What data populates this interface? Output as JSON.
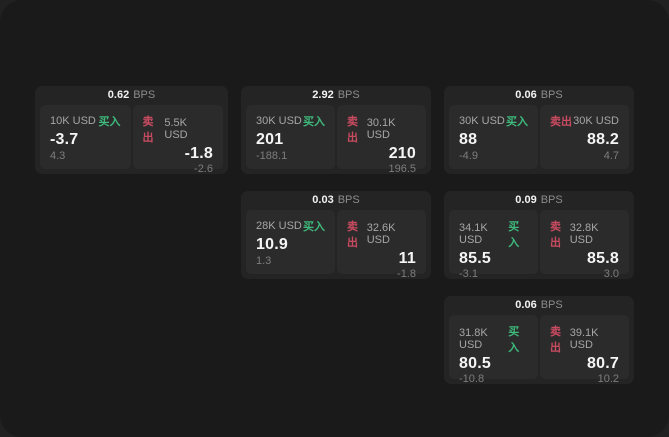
{
  "page": {
    "background_outer": "#212121",
    "background_panel": "#1a1a1a"
  },
  "labels": {
    "buy": "买入",
    "sell": "卖出",
    "bps_unit": "BPS"
  },
  "colors": {
    "buy_accent": "#3eba7c",
    "sell_accent": "#c94b60",
    "card_background": "#242424",
    "pane_background": "#2b2b2b"
  },
  "cards": [
    {
      "bps": "0.62",
      "buy": {
        "amount": "10K USD",
        "price": "-3.7",
        "delta": "4.3"
      },
      "sell": {
        "amount": "5.5K USD",
        "price": "-1.8",
        "delta": "-2.6"
      }
    },
    {
      "bps": "2.92",
      "buy": {
        "amount": "30K USD",
        "price": "201",
        "delta": "-188.1"
      },
      "sell": {
        "amount": "30.1K USD",
        "price": "210",
        "delta": "196.5"
      }
    },
    {
      "bps": "0.06",
      "buy": {
        "amount": "30K USD",
        "price": "88",
        "delta": "-4.9"
      },
      "sell": {
        "amount": "30K USD",
        "price": "88.2",
        "delta": "4.7"
      }
    },
    {
      "bps": "0.03",
      "buy": {
        "amount": "28K USD",
        "price": "10.9",
        "delta": "1.3"
      },
      "sell": {
        "amount": "32.6K USD",
        "price": "11",
        "delta": "-1.8"
      }
    },
    {
      "bps": "0.09",
      "buy": {
        "amount": "34.1K USD",
        "price": "85.5",
        "delta": "-3.1"
      },
      "sell": {
        "amount": "32.8K USD",
        "price": "85.8",
        "delta": "3.0"
      }
    },
    {
      "bps": "0.06",
      "buy": {
        "amount": "31.8K USD",
        "price": "80.5",
        "delta": "-10.8"
      },
      "sell": {
        "amount": "39.1K USD",
        "price": "80.7",
        "delta": "10.2"
      }
    }
  ]
}
